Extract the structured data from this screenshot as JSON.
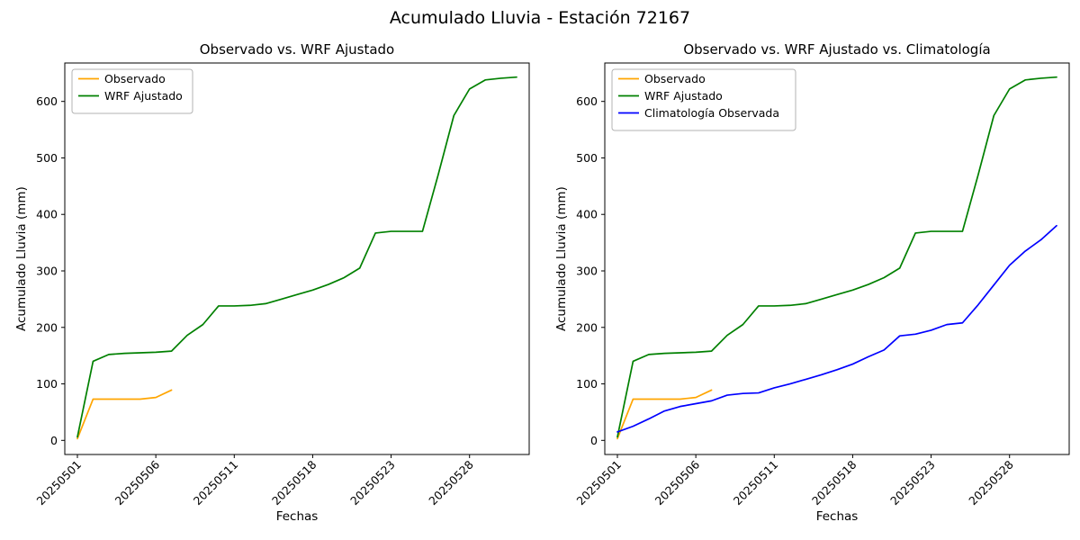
{
  "figure_title": "Acumulado Lluvia - Estación 72167",
  "chart_data": [
    {
      "type": "line",
      "title": "Observado vs. WRF Ajustado",
      "xlabel": "Fechas",
      "ylabel": "Acumulado Lluvia (mm)",
      "ylim": [
        0,
        650
      ],
      "yticks": [
        0,
        100,
        200,
        300,
        400,
        500,
        600
      ],
      "xtick_positions": [
        0,
        5,
        10,
        15,
        20,
        25
      ],
      "xtick_labels": [
        "20250501",
        "20250506",
        "20250511",
        "20250518",
        "20250523",
        "20250528"
      ],
      "grid": false,
      "legend_position": "upper left",
      "series": [
        {
          "name": "Observado",
          "color": "#ffa500",
          "values": [
            3,
            73,
            73,
            73,
            73,
            76,
            89
          ]
        },
        {
          "name": "WRF Ajustado",
          "color": "#008000",
          "values": [
            6,
            140,
            152,
            154,
            155,
            156,
            158,
            186,
            205,
            238,
            238,
            239,
            242,
            250,
            258,
            266,
            276,
            288,
            305,
            367,
            370,
            370,
            370,
            470,
            575,
            622,
            638,
            641,
            643
          ]
        }
      ]
    },
    {
      "type": "line",
      "title": "Observado vs. WRF Ajustado vs. Climatología",
      "xlabel": "Fechas",
      "ylabel": "Acumulado Lluvia (mm)",
      "ylim": [
        0,
        650
      ],
      "yticks": [
        0,
        100,
        200,
        300,
        400,
        500,
        600
      ],
      "xtick_positions": [
        0,
        5,
        10,
        15,
        20,
        25
      ],
      "xtick_labels": [
        "20250501",
        "20250506",
        "20250511",
        "20250518",
        "20250523",
        "20250528"
      ],
      "grid": false,
      "legend_position": "upper left",
      "series": [
        {
          "name": "Observado",
          "color": "#ffa500",
          "values": [
            3,
            73,
            73,
            73,
            73,
            76,
            89
          ]
        },
        {
          "name": "WRF Ajustado",
          "color": "#008000",
          "values": [
            6,
            140,
            152,
            154,
            155,
            156,
            158,
            186,
            205,
            238,
            238,
            239,
            242,
            250,
            258,
            266,
            276,
            288,
            305,
            367,
            370,
            370,
            370,
            470,
            575,
            622,
            638,
            641,
            643
          ]
        },
        {
          "name": "Climatología Observada",
          "color": "#0000ff",
          "values": [
            15,
            25,
            38,
            52,
            60,
            65,
            70,
            80,
            83,
            84,
            93,
            100,
            108,
            116,
            125,
            135,
            148,
            160,
            185,
            188,
            195,
            205,
            208,
            240,
            275,
            310,
            335,
            355,
            380
          ]
        }
      ]
    }
  ]
}
